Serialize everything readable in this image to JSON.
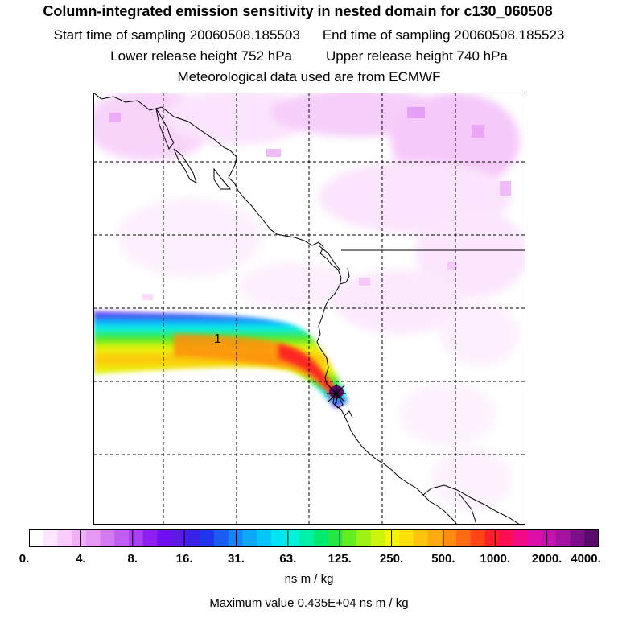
{
  "title": "Column-integrated emission sensitivity in nested domain for c130_060508",
  "start_label": "Start time of sampling 20060508.185503",
  "end_label": "End time of sampling 20060508.185523",
  "lower_label": "Lower release height  752 hPa",
  "upper_label": "Upper release height  740 hPa",
  "met_label": "Meteorological data used are from ECMWF",
  "plume_label": "1",
  "colorbar": {
    "tick_labels": [
      "0.",
      "4.",
      "8.",
      "16.",
      "31.",
      "63.",
      "125.",
      "250.",
      "500.",
      "1000.",
      "2000.",
      "4000."
    ],
    "units": "ns m / kg",
    "colors": [
      "#ffffff",
      "#fde6ff",
      "#f8ccfb",
      "#f0b0f7",
      "#e79af5",
      "#d579f3",
      "#c25df2",
      "#ac3ff3",
      "#8f1ef4",
      "#7010f2",
      "#5c1ae6",
      "#3b22e8",
      "#1f36ee",
      "#1b5cf5",
      "#1385f7",
      "#0da8f9",
      "#05c6f8",
      "#00e6f3",
      "#00f3d8",
      "#00f0a8",
      "#00ea70",
      "#23e842",
      "#63ec1e",
      "#9ef213",
      "#cdf50c",
      "#f5f50a",
      "#ffe00a",
      "#ffc40c",
      "#ffaa0e",
      "#ff8c10",
      "#ff6a14",
      "#ff4418",
      "#ff1f28",
      "#ff0e56",
      "#f20a86",
      "#dd0fa8",
      "#c412ac",
      "#a312a0",
      "#7e0f8a",
      "#5a0a6b"
    ]
  },
  "max_value_label": "Maximum value  0.435E+04 ns m / kg"
}
